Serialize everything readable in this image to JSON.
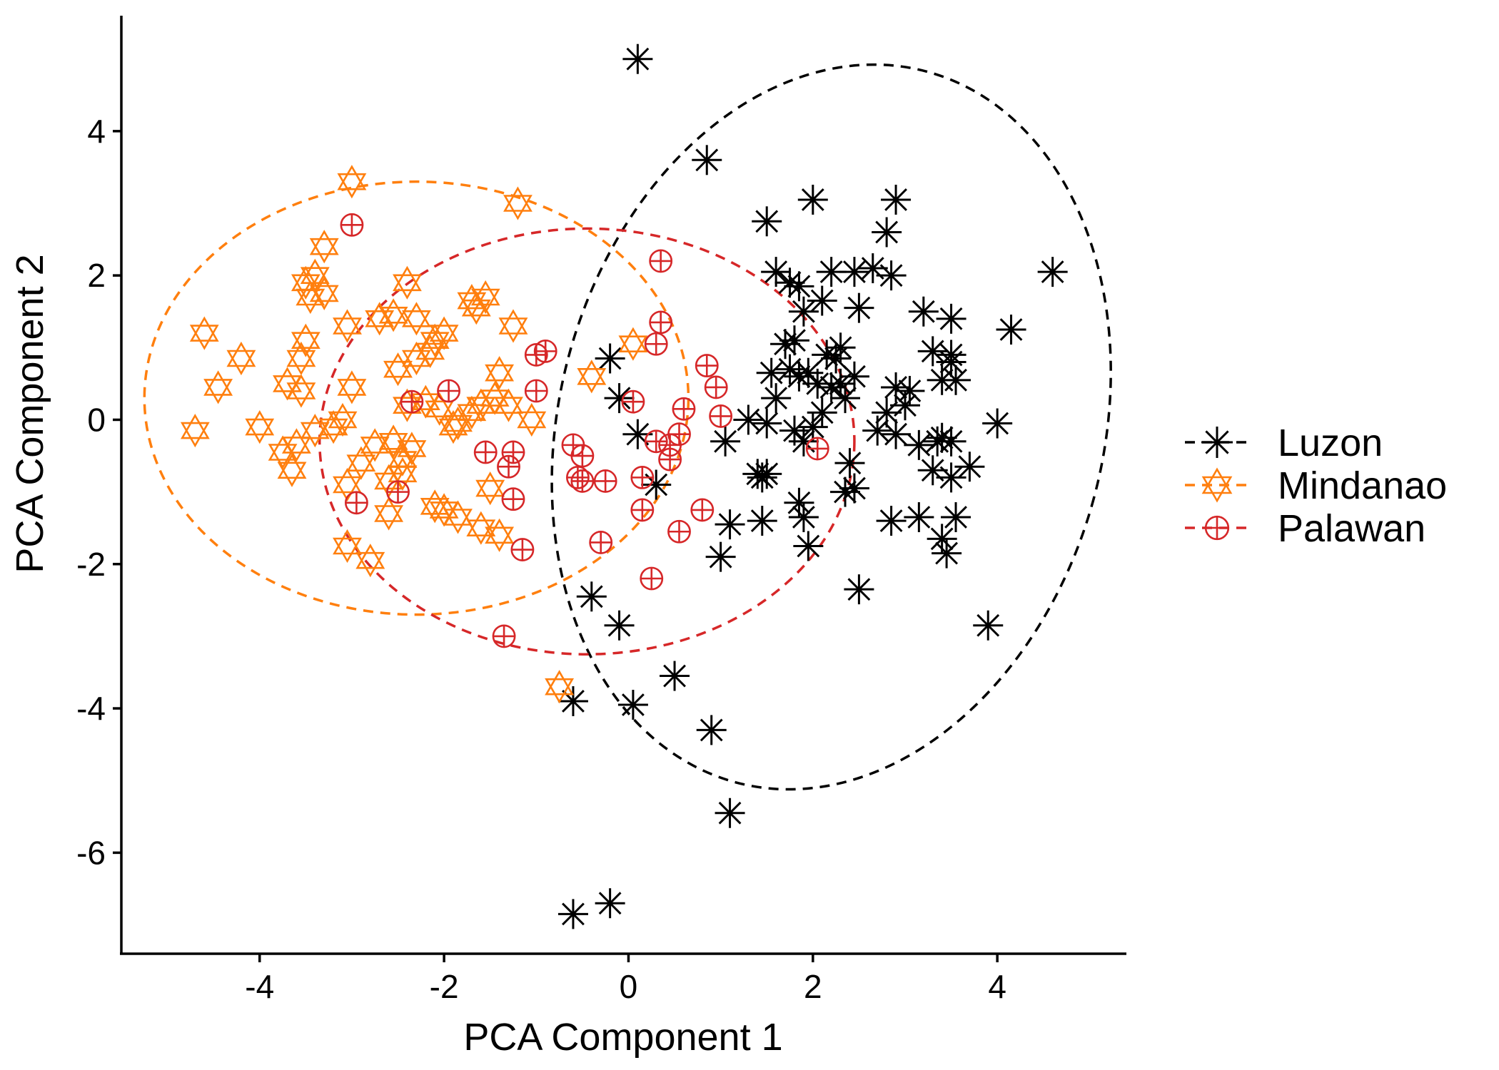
{
  "chart_data": {
    "type": "scatter",
    "title": "",
    "xlabel": "PCA Component 1",
    "ylabel": "PCA Component 2",
    "xlim": [
      -5.5,
      5.4
    ],
    "ylim": [
      -7.4,
      5.6
    ],
    "x_ticks": [
      -4,
      -2,
      0,
      2,
      4
    ],
    "y_ticks": [
      -6,
      -4,
      -2,
      0,
      2,
      4
    ],
    "x_tick_labels": [
      "-4",
      "-2",
      "0",
      "2",
      "4"
    ],
    "y_tick_labels": [
      "-6",
      "-4",
      "-2",
      "0",
      "2",
      "4"
    ],
    "grid": false,
    "legend_position": "right",
    "series": [
      {
        "name": "Luzon",
        "color": "#000000",
        "marker": "asterisk",
        "ellipse_color": "#000000",
        "points": [
          [
            0.1,
            5.0
          ],
          [
            0.85,
            3.6
          ],
          [
            1.5,
            2.75
          ],
          [
            2.0,
            3.05
          ],
          [
            2.9,
            3.05
          ],
          [
            2.8,
            2.6
          ],
          [
            4.6,
            2.05
          ],
          [
            4.15,
            1.25
          ],
          [
            1.6,
            2.05
          ],
          [
            1.75,
            1.9
          ],
          [
            1.85,
            1.85
          ],
          [
            2.1,
            1.65
          ],
          [
            2.2,
            2.05
          ],
          [
            2.45,
            2.05
          ],
          [
            2.65,
            2.1
          ],
          [
            2.85,
            2.0
          ],
          [
            1.9,
            1.5
          ],
          [
            2.5,
            1.55
          ],
          [
            3.2,
            1.5
          ],
          [
            3.5,
            1.4
          ],
          [
            1.7,
            1.05
          ],
          [
            1.8,
            1.1
          ],
          [
            2.15,
            0.9
          ],
          [
            2.25,
            0.85
          ],
          [
            2.3,
            1.0
          ],
          [
            3.3,
            0.95
          ],
          [
            3.5,
            0.9
          ],
          [
            1.55,
            0.65
          ],
          [
            1.75,
            0.7
          ],
          [
            1.85,
            0.6
          ],
          [
            1.95,
            0.65
          ],
          [
            2.05,
            0.5
          ],
          [
            2.2,
            0.45
          ],
          [
            2.3,
            0.5
          ],
          [
            2.45,
            0.6
          ],
          [
            2.9,
            0.45
          ],
          [
            3.05,
            0.4
          ],
          [
            3.4,
            0.55
          ],
          [
            3.55,
            0.55
          ],
          [
            3.5,
            0.8
          ],
          [
            1.6,
            0.3
          ],
          [
            2.1,
            0.1
          ],
          [
            2.35,
            0.3
          ],
          [
            2.8,
            0.1
          ],
          [
            3.0,
            0.2
          ],
          [
            1.3,
            0.0
          ],
          [
            1.5,
            -0.05
          ],
          [
            1.8,
            -0.15
          ],
          [
            1.9,
            -0.3
          ],
          [
            2.0,
            -0.1
          ],
          [
            2.7,
            -0.15
          ],
          [
            2.9,
            -0.2
          ],
          [
            3.15,
            -0.35
          ],
          [
            3.35,
            -0.3
          ],
          [
            3.4,
            -0.25
          ],
          [
            3.5,
            -0.3
          ],
          [
            4.0,
            -0.05
          ],
          [
            3.3,
            -0.7
          ],
          [
            3.5,
            -0.8
          ],
          [
            3.7,
            -0.65
          ],
          [
            2.4,
            -0.6
          ],
          [
            2.45,
            -0.95
          ],
          [
            2.35,
            -1.0
          ],
          [
            1.4,
            -0.75
          ],
          [
            1.45,
            -0.8
          ],
          [
            1.5,
            -0.75
          ],
          [
            1.85,
            -1.15
          ],
          [
            1.9,
            -1.35
          ],
          [
            2.85,
            -1.4
          ],
          [
            3.15,
            -1.35
          ],
          [
            3.4,
            -1.65
          ],
          [
            3.45,
            -1.85
          ],
          [
            3.55,
            -1.35
          ],
          [
            1.05,
            -0.3
          ],
          [
            1.1,
            -1.45
          ],
          [
            1.45,
            -1.4
          ],
          [
            1.0,
            -1.9
          ],
          [
            1.95,
            -1.75
          ],
          [
            2.5,
            -2.35
          ],
          [
            -0.2,
            0.85
          ],
          [
            -0.1,
            0.3
          ],
          [
            0.1,
            -0.2
          ],
          [
            0.3,
            -0.9
          ],
          [
            -0.4,
            -2.45
          ],
          [
            -0.1,
            -2.85
          ],
          [
            0.5,
            -3.55
          ],
          [
            0.05,
            -3.95
          ],
          [
            0.9,
            -4.3
          ],
          [
            -0.6,
            -3.9
          ],
          [
            1.1,
            -5.45
          ],
          [
            3.9,
            -2.85
          ],
          [
            -0.6,
            -6.85
          ],
          [
            -0.2,
            -6.7
          ]
        ]
      },
      {
        "name": "Mindanao",
        "color": "#ff7f0e",
        "marker": "hexagram",
        "ellipse_color": "#ff7f0e",
        "points": [
          [
            -3.0,
            3.3
          ],
          [
            -1.2,
            3.0
          ],
          [
            -3.3,
            2.4
          ],
          [
            -3.4,
            2.0
          ],
          [
            -3.5,
            1.9
          ],
          [
            -3.45,
            1.7
          ],
          [
            -3.3,
            1.75
          ],
          [
            -3.05,
            1.3
          ],
          [
            -2.4,
            1.9
          ],
          [
            -1.7,
            1.65
          ],
          [
            -1.55,
            1.7
          ],
          [
            -1.65,
            1.55
          ],
          [
            -1.25,
            1.3
          ],
          [
            -2.7,
            1.4
          ],
          [
            -2.55,
            1.45
          ],
          [
            -2.3,
            1.4
          ],
          [
            -2.1,
            1.1
          ],
          [
            -2.0,
            1.2
          ],
          [
            -3.5,
            1.1
          ],
          [
            -3.55,
            0.85
          ],
          [
            -4.6,
            1.2
          ],
          [
            -4.2,
            0.85
          ],
          [
            -4.45,
            0.45
          ],
          [
            -3.7,
            0.5
          ],
          [
            -3.55,
            0.4
          ],
          [
            -3.0,
            0.45
          ],
          [
            -2.5,
            0.7
          ],
          [
            -2.3,
            0.85
          ],
          [
            -2.15,
            0.95
          ],
          [
            -1.4,
            0.65
          ],
          [
            -0.4,
            0.6
          ],
          [
            0.05,
            1.05
          ],
          [
            -4.7,
            -0.15
          ],
          [
            -4.0,
            -0.1
          ],
          [
            -3.75,
            -0.45
          ],
          [
            -3.6,
            -0.35
          ],
          [
            -3.4,
            -0.15
          ],
          [
            -3.2,
            -0.1
          ],
          [
            -3.1,
            0.0
          ],
          [
            -2.75,
            -0.35
          ],
          [
            -2.55,
            -0.3
          ],
          [
            -2.45,
            -0.55
          ],
          [
            -2.35,
            -0.4
          ],
          [
            -2.4,
            0.2
          ],
          [
            -2.2,
            0.25
          ],
          [
            -2.05,
            0.15
          ],
          [
            -1.85,
            -0.05
          ],
          [
            -1.7,
            0.1
          ],
          [
            -1.6,
            0.2
          ],
          [
            -1.45,
            0.3
          ],
          [
            -1.3,
            0.2
          ],
          [
            -1.05,
            0.0
          ],
          [
            -3.65,
            -0.7
          ],
          [
            -3.05,
            -0.9
          ],
          [
            -2.9,
            -0.6
          ],
          [
            -2.6,
            -0.85
          ],
          [
            -2.45,
            -0.75
          ],
          [
            -2.1,
            -1.2
          ],
          [
            -2.0,
            -1.25
          ],
          [
            -1.85,
            -1.35
          ],
          [
            -1.6,
            -1.5
          ],
          [
            -1.5,
            -0.95
          ],
          [
            -1.4,
            -1.6
          ],
          [
            -3.05,
            -1.75
          ],
          [
            -2.8,
            -1.95
          ],
          [
            -2.6,
            -1.3
          ],
          [
            -0.75,
            -3.7
          ],
          [
            -1.9,
            -0.1
          ]
        ]
      },
      {
        "name": "Palawan",
        "color": "#d62728",
        "marker": "circle-plus",
        "ellipse_color": "#d62728",
        "points": [
          [
            -3.0,
            2.7
          ],
          [
            0.35,
            2.2
          ],
          [
            0.35,
            1.35
          ],
          [
            0.3,
            1.05
          ],
          [
            -1.0,
            0.9
          ],
          [
            -0.9,
            0.95
          ],
          [
            0.85,
            0.75
          ],
          [
            0.95,
            0.45
          ],
          [
            -1.95,
            0.4
          ],
          [
            -2.35,
            0.25
          ],
          [
            -1.0,
            0.4
          ],
          [
            0.05,
            0.25
          ],
          [
            0.6,
            0.15
          ],
          [
            1.0,
            0.05
          ],
          [
            2.05,
            -0.4
          ],
          [
            -0.6,
            -0.35
          ],
          [
            -0.5,
            -0.5
          ],
          [
            -1.55,
            -0.45
          ],
          [
            -1.25,
            -0.45
          ],
          [
            0.3,
            -0.3
          ],
          [
            0.45,
            -0.35
          ],
          [
            0.55,
            -0.2
          ],
          [
            0.45,
            -0.55
          ],
          [
            -0.55,
            -0.8
          ],
          [
            -0.5,
            -0.85
          ],
          [
            -0.25,
            -0.85
          ],
          [
            0.15,
            -0.8
          ],
          [
            -1.3,
            -0.65
          ],
          [
            -2.95,
            -1.15
          ],
          [
            -2.5,
            -1.0
          ],
          [
            -1.25,
            -1.1
          ],
          [
            0.15,
            -1.25
          ],
          [
            0.8,
            -1.25
          ],
          [
            0.55,
            -1.55
          ],
          [
            -1.15,
            -1.8
          ],
          [
            -0.3,
            -1.7
          ],
          [
            0.25,
            -2.2
          ],
          [
            -1.35,
            -3.0
          ]
        ]
      }
    ],
    "ellipses": [
      {
        "series": "Luzon",
        "center": [
          2.2,
          -0.1
        ],
        "semi_axes": [
          2.95,
          5.1
        ],
        "rotation_deg": 15,
        "color": "#000000"
      },
      {
        "series": "Mindanao",
        "center": [
          -2.3,
          0.3
        ],
        "semi_axes": [
          2.95,
          3.0
        ],
        "rotation_deg": 0,
        "color": "#ff7f0e"
      },
      {
        "series": "Palawan",
        "center": [
          -0.45,
          -0.3
        ],
        "semi_axes": [
          2.9,
          2.95
        ],
        "rotation_deg": 0,
        "color": "#d62728"
      }
    ]
  }
}
